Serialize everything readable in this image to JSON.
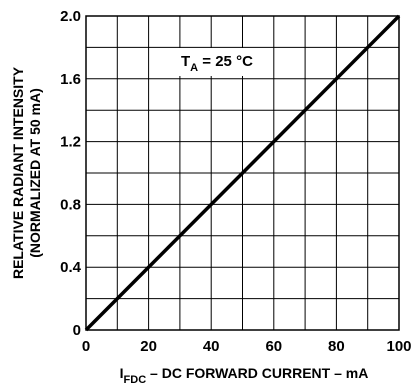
{
  "chart_data": {
    "type": "line",
    "xlabel_prefix": "I",
    "xlabel_sub": "FDC",
    "xlabel_rest": " – DC FORWARD CURRENT – mA",
    "ylabel_line1": "RELATIVE RADIANT INTENSITY",
    "ylabel_line2": "(NORMALIZED AT 50 mA)",
    "xlim": [
      0,
      100
    ],
    "ylim": [
      0,
      2.0
    ],
    "x_ticks": [
      0,
      20,
      40,
      60,
      80,
      100
    ],
    "x_tick_labels": [
      "0",
      "20",
      "40",
      "60",
      "80",
      "100"
    ],
    "y_ticks": [
      0,
      0.4,
      0.8,
      1.2,
      1.6,
      2.0
    ],
    "y_tick_labels": [
      "0",
      "0.4",
      "0.8",
      "1.2",
      "1.6",
      "2.0"
    ],
    "grid": true,
    "annotation_main": "T",
    "annotation_sub": "A",
    "annotation_rest": " = 25 °C",
    "series": [
      {
        "x": [
          0,
          100
        ],
        "y": [
          0,
          2.0
        ]
      }
    ]
  }
}
